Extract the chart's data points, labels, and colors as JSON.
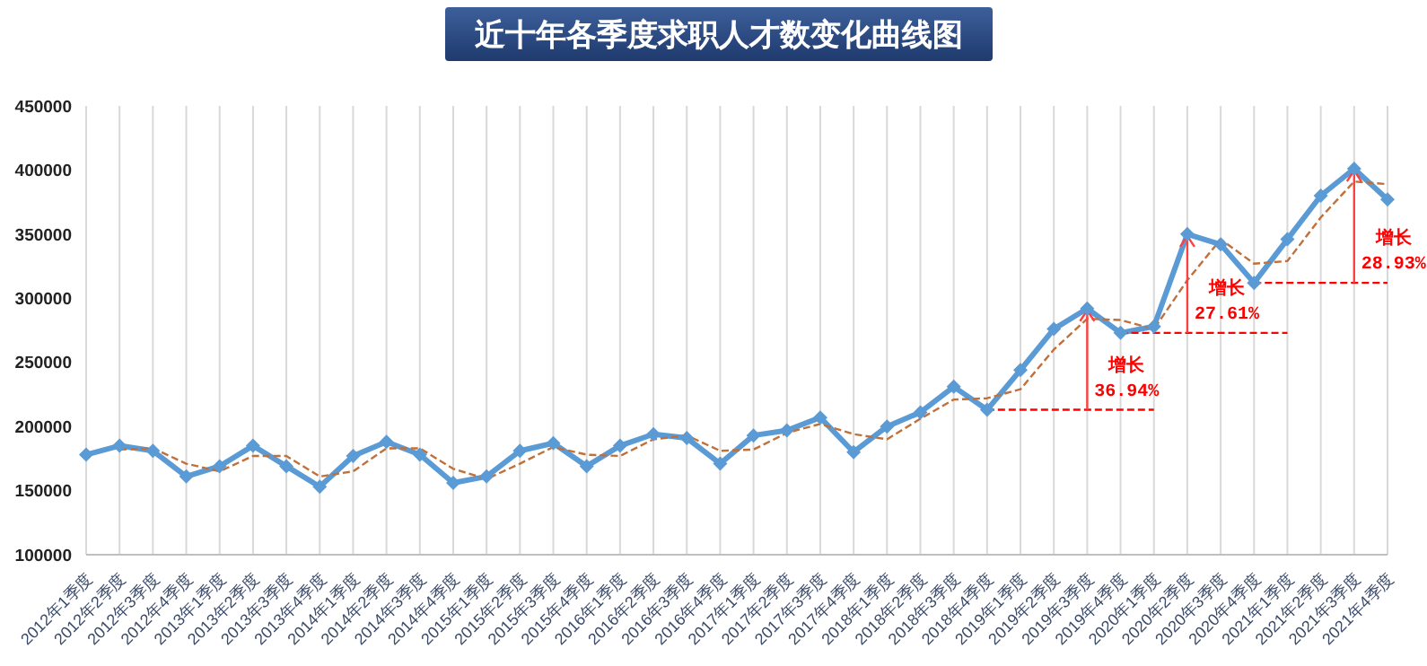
{
  "chart_data": {
    "type": "line",
    "title": "近十年各季度求职人才数变化曲线图",
    "categories": [
      "2012年1季度",
      "2012年2季度",
      "2012年3季度",
      "2012年4季度",
      "2013年1季度",
      "2013年2季度",
      "2013年3季度",
      "2013年4季度",
      "2014年1季度",
      "2014年2季度",
      "2014年3季度",
      "2014年4季度",
      "2015年1季度",
      "2015年2季度",
      "2015年3季度",
      "2015年4季度",
      "2016年1季度",
      "2016年2季度",
      "2016年3季度",
      "2016年4季度",
      "2017年1季度",
      "2017年2季度",
      "2017年3季度",
      "2017年4季度",
      "2018年1季度",
      "2018年2季度",
      "2018年3季度",
      "2018年4季度",
      "2019年1季度",
      "2019年2季度",
      "2019年3季度",
      "2019年4季度",
      "2020年1季度",
      "2020年2季度",
      "2020年3季度",
      "2020年4季度",
      "2021年1季度",
      "2021年2季度",
      "2021年3季度",
      "2021年4季度"
    ],
    "series": [
      {
        "color": "#5b9bd5",
        "marker": "diamond",
        "line_style": "solid",
        "values": [
          178000,
          185000,
          181000,
          161000,
          169000,
          185000,
          169000,
          153000,
          177000,
          188000,
          178000,
          156000,
          161000,
          181000,
          187000,
          169000,
          185000,
          194000,
          191000,
          171000,
          193000,
          197000,
          207000,
          180000,
          200000,
          211000,
          231000,
          213000,
          244000,
          276000,
          292000,
          273000,
          278000,
          350000,
          342000,
          312000,
          346000,
          380000,
          401000,
          377000
        ]
      },
      {
        "color": "#c0703a",
        "marker": "none",
        "line_style": "dashed",
        "values": [
          null,
          182000,
          183000,
          171000,
          165000,
          177000,
          177000,
          161000,
          165000,
          183000,
          183000,
          167000,
          159000,
          171000,
          184000,
          178000,
          177000,
          190000,
          193000,
          181000,
          182000,
          195000,
          202000,
          194000,
          190000,
          206000,
          221000,
          222000,
          229000,
          260000,
          284000,
          283000,
          276000,
          314000,
          346000,
          327000,
          329000,
          363000,
          391000,
          389000
        ]
      },
      {
        "type": "line",
        "color": "#ff0000",
        "marker": "none",
        "line_style": "dashed",
        "x": [
          "2018年4季度",
          "2020年1季度"
        ],
        "values": [
          213000,
          213000
        ]
      },
      {
        "type": "line",
        "color": "#ff0000",
        "marker": "none",
        "line_style": "dashed",
        "x": [
          "2019年4季度",
          "2021年1季度"
        ],
        "values": [
          273000,
          273000
        ]
      },
      {
        "type": "line",
        "color": "#ff0000",
        "marker": "none",
        "line_style": "dashed",
        "x": [
          "2020年4季度",
          "2021年4季度"
        ],
        "values": [
          312000,
          312000
        ]
      }
    ],
    "annotations": [
      {
        "text": "增长\n36.94%",
        "x": "2019年3季度",
        "y": 292000
      },
      {
        "text": "增长\n27.61%",
        "x": "2020年2季度",
        "y": 350000
      },
      {
        "text": "增长\n28.93%",
        "x": "2021年3季度",
        "y": 401000
      }
    ],
    "ylim": [
      100000,
      450000
    ],
    "yticks": [
      100000,
      150000,
      200000,
      250000,
      300000,
      350000,
      400000,
      450000
    ],
    "grid": "x"
  }
}
